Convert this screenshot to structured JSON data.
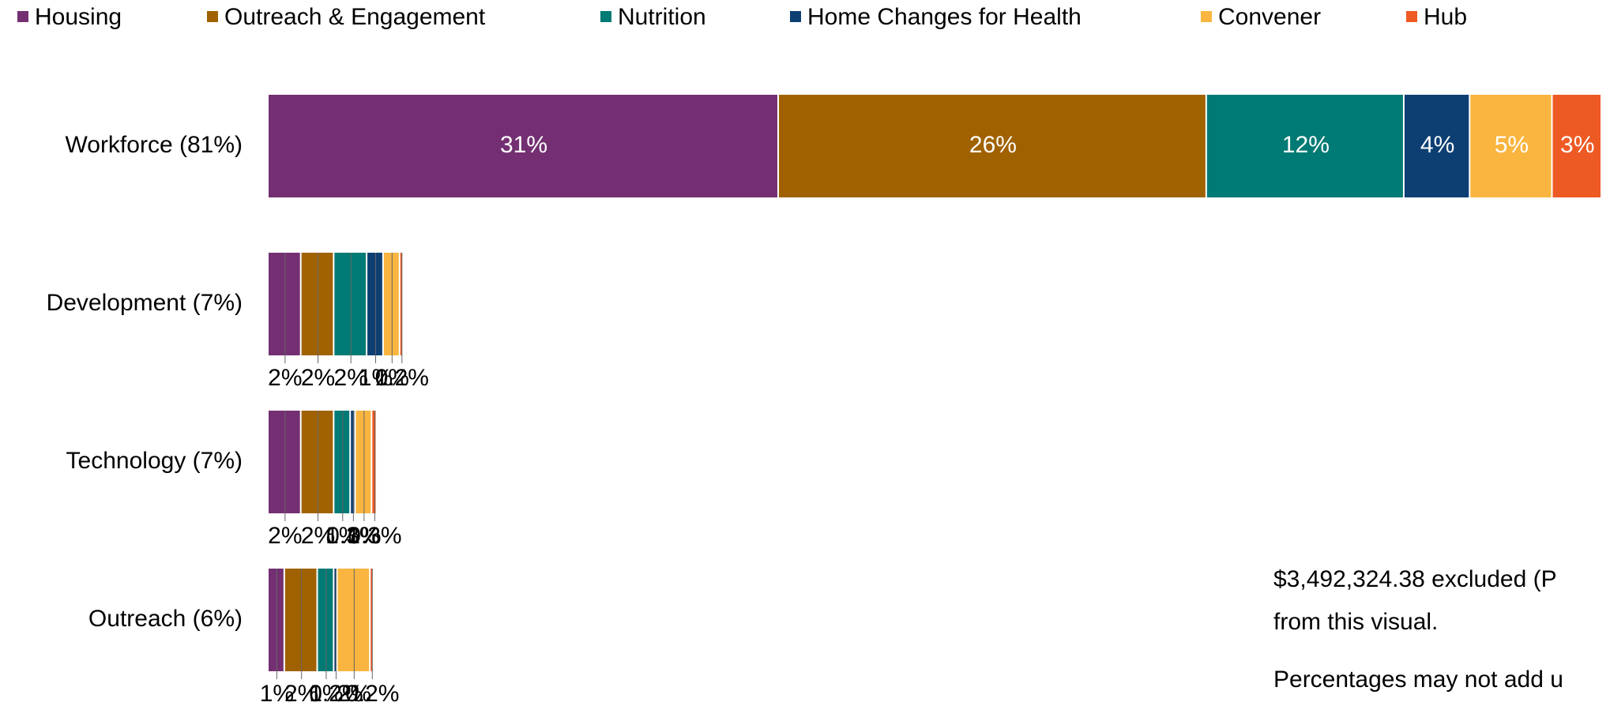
{
  "chart_data": {
    "type": "stacked-bar-horizontal",
    "categories": [
      "Workforce (81%)",
      "Development (7%)",
      "Technology (7%)",
      "Outreach (6%)"
    ],
    "series": [
      {
        "name": "Housing",
        "color": "#742f72",
        "values": [
          31,
          2,
          2,
          1
        ],
        "value_labels": [
          "31%",
          "2%",
          "2%",
          "1%"
        ]
      },
      {
        "name": "Outreach & Engagement",
        "color": "#a06200",
        "values": [
          26,
          2,
          2,
          2
        ],
        "value_labels": [
          "26%",
          "2%",
          "2%",
          "2%"
        ]
      },
      {
        "name": "Nutrition",
        "color": "#007a74",
        "values": [
          12,
          2,
          1,
          1
        ],
        "value_labels": [
          "12%",
          "2%",
          "1%",
          "1%"
        ]
      },
      {
        "name": "Home Changes for Health",
        "color": "#0d3f73",
        "values": [
          4,
          1,
          0.3,
          0.2
        ],
        "value_labels": [
          "4%",
          "1%",
          "0.3%",
          "0.2%"
        ]
      },
      {
        "name": "Convener",
        "color": "#f9b53f",
        "values": [
          5,
          1,
          1,
          2
        ],
        "value_labels": [
          "5%",
          "1%",
          "1%",
          "2%"
        ]
      },
      {
        "name": "Hub",
        "color": "#ee5a24",
        "values": [
          3,
          0.2,
          0.3,
          0.2
        ],
        "value_labels": [
          "3%",
          "0.2%",
          "0.3%",
          "0.2%"
        ]
      }
    ],
    "legend": "top",
    "notes": [
      "$3,492,324.38 excluded (P",
      "from this visual.",
      "Percentages may not add u"
    ]
  }
}
